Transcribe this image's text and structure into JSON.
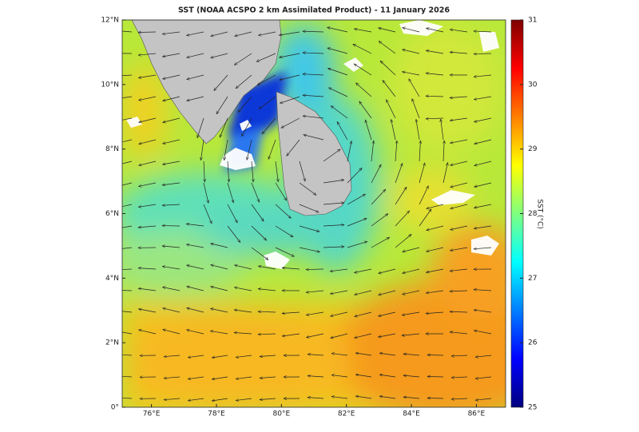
{
  "chart_data": {
    "type": "map",
    "title": "SST (NOAA ACSPO 2 km Assimilated Product) - 11 January 2026",
    "xlim": [
      75.1,
      86.9
    ],
    "ylim": [
      0,
      12
    ],
    "xticks": [
      {
        "value": 76,
        "label": "76°E"
      },
      {
        "value": 78,
        "label": "78°E"
      },
      {
        "value": 80,
        "label": "80°E"
      },
      {
        "value": 82,
        "label": "82°E"
      },
      {
        "value": 84,
        "label": "84°E"
      },
      {
        "value": 86,
        "label": "86°E"
      }
    ],
    "yticks": [
      {
        "value": 0,
        "label": "0°"
      },
      {
        "value": 2,
        "label": "2°N"
      },
      {
        "value": 4,
        "label": "4°N"
      },
      {
        "value": 6,
        "label": "6°N"
      },
      {
        "value": 8,
        "label": "8°N"
      },
      {
        "value": 10,
        "label": "10°N"
      },
      {
        "value": 12,
        "label": "12°N"
      }
    ],
    "colorbar": {
      "label": "SST (°C)",
      "lim": [
        25,
        31
      ],
      "ticks": [
        25,
        26,
        27,
        28,
        29,
        30,
        31
      ],
      "colormap": "jet"
    }
  }
}
